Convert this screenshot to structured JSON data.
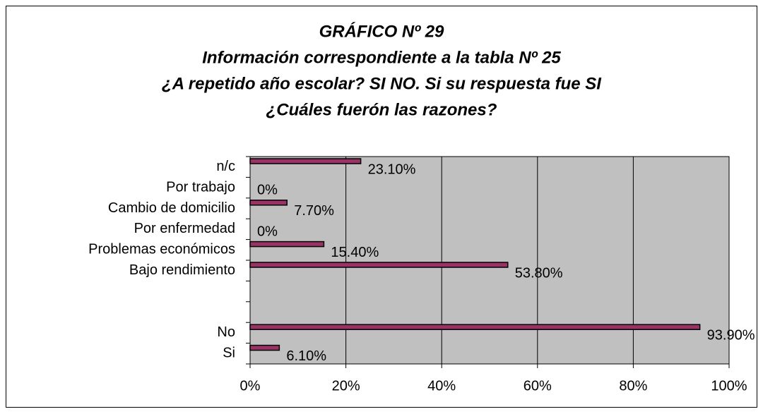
{
  "chart_data": {
    "type": "hbar",
    "title": [
      "GRÁFICO Nº 29",
      "Información correspondiente a la tabla Nº 25",
      "¿A repetido año escolar? SI  NO. Si su respuesta fue SI",
      "¿Cuáles fuerón las razones?"
    ],
    "categories": [
      "n/c",
      "Por trabajo",
      "Cambio de domicilio",
      "Por enfermedad",
      "Problemas económicos",
      "Bajo rendimiento",
      null,
      null,
      "No",
      "Si"
    ],
    "values": [
      23.1,
      0,
      7.7,
      0,
      15.4,
      53.8,
      null,
      null,
      93.9,
      6.1
    ],
    "value_labels": [
      "23.10%",
      "0%",
      "7.70%",
      "0%",
      "15.40%",
      "53.80%",
      null,
      null,
      "93.90%",
      "6.10%"
    ],
    "color": "#993366",
    "xlim": [
      0,
      100
    ],
    "xticks": [
      {
        "value": 0,
        "label": "0%"
      },
      {
        "value": 20,
        "label": "20%"
      },
      {
        "value": 40,
        "label": "40%"
      },
      {
        "value": 60,
        "label": "60%"
      },
      {
        "value": 80,
        "label": "80%"
      },
      {
        "value": 100,
        "label": "100%"
      }
    ],
    "grid": true
  }
}
